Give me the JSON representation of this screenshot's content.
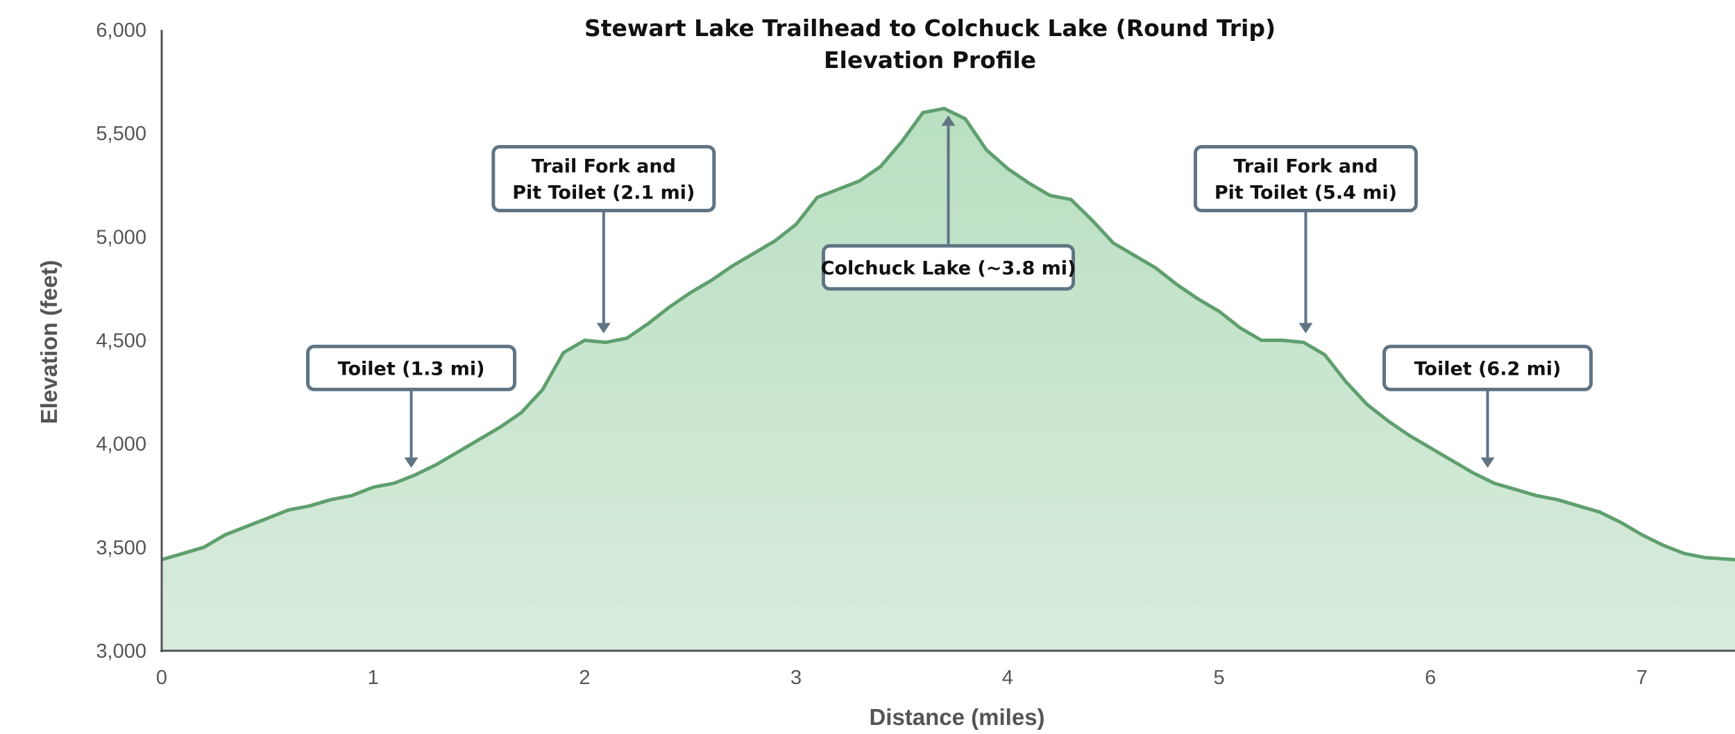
{
  "chart_data": {
    "type": "area",
    "title": [
      "Stewart Lake Trailhead to Colchuck Lake (Round Trip)",
      "Elevation Profile"
    ],
    "xlabel": "Distance (miles)",
    "ylabel": "Elevation (feet)",
    "xlim": [
      0,
      7.44
    ],
    "ylim": [
      3000,
      6000
    ],
    "x_ticks": [
      0,
      1,
      2,
      3,
      4,
      5,
      6,
      7
    ],
    "y_ticks": [
      3000,
      3500,
      4000,
      4500,
      5000,
      5500,
      6000
    ],
    "y_tick_labels": [
      "3,000",
      "3,500",
      "4,000",
      "4,500",
      "5,000",
      "5,500",
      "6,000"
    ],
    "grid": false,
    "legend": "none",
    "colors": {
      "line": "#5f9f6e",
      "fill_top": "#b9dfc2",
      "fill_bottom": "#d8ecdc",
      "callout": "#5f7484",
      "axis": "#555555"
    },
    "series": [
      {
        "x": [
          0,
          0.1,
          0.2,
          0.3,
          0.4,
          0.5,
          0.6,
          0.7,
          0.8,
          0.9,
          1.0,
          1.1,
          1.2,
          1.3,
          1.4,
          1.5,
          1.6,
          1.7,
          1.8,
          1.9,
          2.0,
          2.1,
          2.2,
          2.3,
          2.4,
          2.5,
          2.6,
          2.7,
          2.8,
          2.9,
          3.0,
          3.1,
          3.2,
          3.3,
          3.4,
          3.5,
          3.6,
          3.7,
          3.8,
          3.9,
          4.0,
          4.1,
          4.2,
          4.3,
          4.4,
          4.5,
          4.6,
          4.7,
          4.8,
          4.9,
          5.0,
          5.1,
          5.2,
          5.3,
          5.4,
          5.5,
          5.6,
          5.7,
          5.8,
          5.9,
          6.0,
          6.1,
          6.2,
          6.3,
          6.4,
          6.5,
          6.6,
          6.7,
          6.8,
          6.9,
          7.0,
          7.1,
          7.2,
          7.3,
          7.44
        ],
        "y": [
          3440,
          3470,
          3500,
          3560,
          3600,
          3640,
          3680,
          3700,
          3730,
          3750,
          3790,
          3810,
          3850,
          3900,
          3960,
          4020,
          4080,
          4150,
          4260,
          4440,
          4500,
          4490,
          4510,
          4580,
          4660,
          4730,
          4790,
          4860,
          4920,
          4980,
          5060,
          5190,
          5230,
          5270,
          5340,
          5460,
          5600,
          5620,
          5570,
          5420,
          5330,
          5260,
          5200,
          5180,
          5080,
          4970,
          4910,
          4850,
          4770,
          4700,
          4640,
          4560,
          4500,
          4500,
          4490,
          4430,
          4300,
          4190,
          4110,
          4040,
          3980,
          3920,
          3860,
          3810,
          3780,
          3750,
          3730,
          3700,
          3670,
          3620,
          3560,
          3510,
          3470,
          3450,
          3440
        ]
      }
    ],
    "annotations": [
      {
        "lines": [
          "Toilet (1.3 mi)"
        ],
        "x": 1.18,
        "y": 3860,
        "direction": "down"
      },
      {
        "lines": [
          "Trail Fork and",
          "Pit Toilet (2.1 mi)"
        ],
        "x": 2.09,
        "y": 4510,
        "direction": "down"
      },
      {
        "lines": [
          "Colchuck Lake (~3.8 mi)"
        ],
        "x": 3.72,
        "y": 5610,
        "direction": "up"
      },
      {
        "lines": [
          "Trail Fork and",
          "Pit Toilet (5.4 mi)"
        ],
        "x": 5.41,
        "y": 4510,
        "direction": "down"
      },
      {
        "lines": [
          "Toilet (6.2 mi)"
        ],
        "x": 6.27,
        "y": 3860,
        "direction": "down"
      }
    ]
  }
}
